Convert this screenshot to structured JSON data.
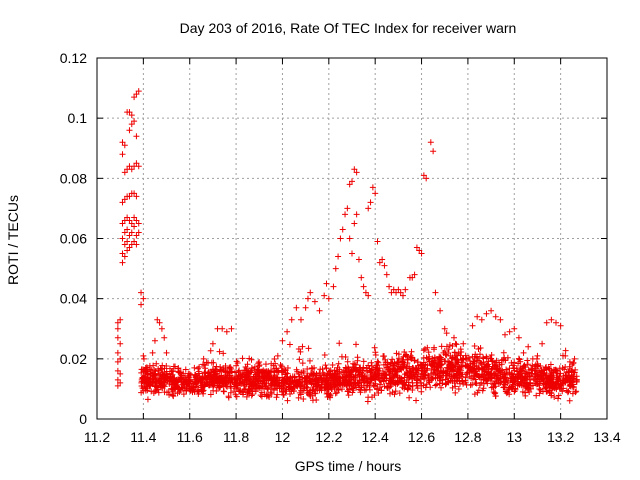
{
  "chart_data": {
    "type": "scatter",
    "title": "Day 203 of 2016, Rate Of TEC Index for receiver warn",
    "xlabel": "GPS time / hours",
    "ylabel": "ROTI / TECUs",
    "xlim": [
      11.2,
      13.4
    ],
    "ylim": [
      0,
      0.12
    ],
    "xticks": [
      11.2,
      11.4,
      11.6,
      11.8,
      12,
      12.2,
      12.4,
      12.6,
      12.8,
      13,
      13.2,
      13.4
    ],
    "xtick_labels": [
      "11.2",
      "11.4",
      "11.6",
      "11.8",
      "12",
      "12.2",
      "12.4",
      "12.6",
      "12.8",
      "13",
      "13.2",
      "13.4"
    ],
    "yticks": [
      0,
      0.02,
      0.04,
      0.06,
      0.08,
      0.1,
      0.12
    ],
    "ytick_labels": [
      "0",
      "0.02",
      "0.04",
      "0.06",
      "0.08",
      "0.1",
      "0.12"
    ],
    "grid": true,
    "marker": "+",
    "marker_color": "#ee0000",
    "series": [
      {
        "name": "ROTI",
        "points": [
          [
            11.29,
            0.032
          ],
          [
            11.29,
            0.03
          ],
          [
            11.29,
            0.027
          ],
          [
            11.29,
            0.022
          ],
          [
            11.29,
            0.019
          ],
          [
            11.29,
            0.016
          ],
          [
            11.29,
            0.013
          ],
          [
            11.29,
            0.011
          ],
          [
            11.3,
            0.033
          ],
          [
            11.3,
            0.025
          ],
          [
            11.3,
            0.02
          ],
          [
            11.3,
            0.015
          ],
          [
            11.3,
            0.012
          ],
          [
            11.31,
            0.092
          ],
          [
            11.31,
            0.088
          ],
          [
            11.31,
            0.072
          ],
          [
            11.31,
            0.065
          ],
          [
            11.31,
            0.06
          ],
          [
            11.31,
            0.055
          ],
          [
            11.31,
            0.052
          ],
          [
            11.32,
            0.091
          ],
          [
            11.32,
            0.082
          ],
          [
            11.32,
            0.073
          ],
          [
            11.32,
            0.066
          ],
          [
            11.32,
            0.062
          ],
          [
            11.32,
            0.058
          ],
          [
            11.32,
            0.054
          ],
          [
            11.33,
            0.102
          ],
          [
            11.33,
            0.083
          ],
          [
            11.33,
            0.074
          ],
          [
            11.33,
            0.067
          ],
          [
            11.33,
            0.063
          ],
          [
            11.33,
            0.059
          ],
          [
            11.33,
            0.056
          ],
          [
            11.34,
            0.102
          ],
          [
            11.34,
            0.096
          ],
          [
            11.34,
            0.084
          ],
          [
            11.34,
            0.074
          ],
          [
            11.34,
            0.066
          ],
          [
            11.34,
            0.061
          ],
          [
            11.34,
            0.057
          ],
          [
            11.35,
            0.101
          ],
          [
            11.35,
            0.098
          ],
          [
            11.35,
            0.083
          ],
          [
            11.35,
            0.075
          ],
          [
            11.35,
            0.065
          ],
          [
            11.35,
            0.062
          ],
          [
            11.35,
            0.058
          ],
          [
            11.36,
            0.107
          ],
          [
            11.36,
            0.099
          ],
          [
            11.36,
            0.084
          ],
          [
            11.36,
            0.075
          ],
          [
            11.36,
            0.067
          ],
          [
            11.36,
            0.064
          ],
          [
            11.36,
            0.059
          ],
          [
            11.37,
            0.108
          ],
          [
            11.37,
            0.094
          ],
          [
            11.37,
            0.085
          ],
          [
            11.37,
            0.074
          ],
          [
            11.37,
            0.066
          ],
          [
            11.37,
            0.061
          ],
          [
            11.37,
            0.058
          ],
          [
            11.38,
            0.109
          ],
          [
            11.38,
            0.084
          ],
          [
            11.38,
            0.065
          ],
          [
            11.38,
            0.062
          ],
          [
            11.39,
            0.042
          ],
          [
            11.39,
            0.038
          ],
          [
            11.4,
            0.04
          ],
          [
            11.4,
            0.021
          ],
          [
            11.41,
            0.017
          ],
          [
            11.42,
            0.013
          ],
          [
            11.43,
            0.011
          ],
          [
            11.44,
            0.022
          ],
          [
            11.45,
            0.026
          ],
          [
            11.46,
            0.033
          ],
          [
            11.47,
            0.032
          ],
          [
            11.48,
            0.03
          ],
          [
            11.49,
            0.027
          ],
          [
            11.5,
            0.022
          ],
          [
            11.62,
            0.017
          ],
          [
            11.66,
            0.02
          ],
          [
            11.7,
            0.025
          ],
          [
            11.72,
            0.03
          ],
          [
            11.74,
            0.03
          ],
          [
            11.76,
            0.029
          ],
          [
            11.78,
            0.03
          ],
          [
            11.95,
            0.011
          ],
          [
            11.98,
            0.021
          ],
          [
            12.0,
            0.026
          ],
          [
            12.02,
            0.029
          ],
          [
            12.04,
            0.033
          ],
          [
            12.06,
            0.037
          ],
          [
            12.08,
            0.033
          ],
          [
            12.1,
            0.037
          ],
          [
            12.11,
            0.04
          ],
          [
            12.12,
            0.042
          ],
          [
            12.14,
            0.039
          ],
          [
            12.16,
            0.036
          ],
          [
            12.18,
            0.041
          ],
          [
            12.19,
            0.045
          ],
          [
            12.2,
            0.04
          ],
          [
            12.22,
            0.044
          ],
          [
            12.23,
            0.05
          ],
          [
            12.24,
            0.054
          ],
          [
            12.25,
            0.06
          ],
          [
            12.26,
            0.063
          ],
          [
            12.27,
            0.068
          ],
          [
            12.28,
            0.07
          ],
          [
            12.29,
            0.078
          ],
          [
            12.3,
            0.079
          ],
          [
            12.31,
            0.083
          ],
          [
            12.32,
            0.082
          ],
          [
            12.32,
            0.068
          ],
          [
            12.31,
            0.065
          ],
          [
            12.29,
            0.06
          ],
          [
            12.3,
            0.055
          ],
          [
            12.33,
            0.053
          ],
          [
            12.34,
            0.047
          ],
          [
            12.35,
            0.044
          ],
          [
            12.36,
            0.042
          ],
          [
            12.37,
            0.041
          ],
          [
            12.37,
            0.07
          ],
          [
            12.38,
            0.072
          ],
          [
            12.39,
            0.077
          ],
          [
            12.4,
            0.075
          ],
          [
            12.41,
            0.059
          ],
          [
            12.42,
            0.052
          ],
          [
            12.43,
            0.053
          ],
          [
            12.44,
            0.051
          ],
          [
            12.45,
            0.048
          ],
          [
            12.46,
            0.044
          ],
          [
            12.47,
            0.042
          ],
          [
            12.48,
            0.043
          ],
          [
            12.49,
            0.042
          ],
          [
            12.5,
            0.043
          ],
          [
            12.51,
            0.042
          ],
          [
            12.52,
            0.041
          ],
          [
            12.53,
            0.043
          ],
          [
            12.55,
            0.047
          ],
          [
            12.56,
            0.047
          ],
          [
            12.57,
            0.048
          ],
          [
            12.58,
            0.057
          ],
          [
            12.59,
            0.056
          ],
          [
            12.6,
            0.055
          ],
          [
            12.61,
            0.081
          ],
          [
            12.62,
            0.08
          ],
          [
            12.64,
            0.092
          ],
          [
            12.65,
            0.089
          ],
          [
            12.66,
            0.042
          ],
          [
            12.68,
            0.036
          ],
          [
            12.7,
            0.03
          ],
          [
            12.74,
            0.027
          ],
          [
            12.78,
            0.025
          ],
          [
            12.82,
            0.031
          ],
          [
            12.84,
            0.034
          ],
          [
            12.86,
            0.033
          ],
          [
            12.88,
            0.035
          ],
          [
            12.9,
            0.036
          ],
          [
            12.92,
            0.034
          ],
          [
            12.94,
            0.033
          ],
          [
            12.96,
            0.028
          ],
          [
            12.98,
            0.029
          ],
          [
            13.0,
            0.03
          ],
          [
            13.02,
            0.027
          ],
          [
            13.04,
            0.022
          ],
          [
            13.06,
            0.024
          ],
          [
            13.08,
            0.02
          ],
          [
            13.1,
            0.021
          ],
          [
            13.12,
            0.025
          ],
          [
            13.14,
            0.032
          ],
          [
            13.16,
            0.033
          ],
          [
            13.18,
            0.032
          ],
          [
            13.2,
            0.031
          ],
          [
            13.22,
            0.021
          ],
          [
            13.24,
            0.019
          ],
          [
            13.25,
            0.018
          ],
          [
            13.26,
            0.02
          ]
        ],
        "band": {
          "x_from": 11.39,
          "x_to": 13.27,
          "low_y": [
            0.005,
            0.006,
            0.006,
            0.007,
            0.006,
            0.005,
            0.006,
            0.005,
            0.004,
            0.006,
            0.005,
            0.006,
            0.005,
            0.006,
            0.007,
            0.006,
            0.005,
            0.006,
            0.005,
            0.006
          ],
          "high_y": [
            0.021,
            0.02,
            0.018,
            0.02,
            0.02,
            0.022,
            0.019,
            0.02,
            0.02,
            0.021,
            0.022,
            0.024,
            0.026,
            0.028,
            0.026,
            0.025,
            0.022,
            0.021,
            0.02,
            0.02
          ],
          "count": 2400
        }
      }
    ]
  }
}
